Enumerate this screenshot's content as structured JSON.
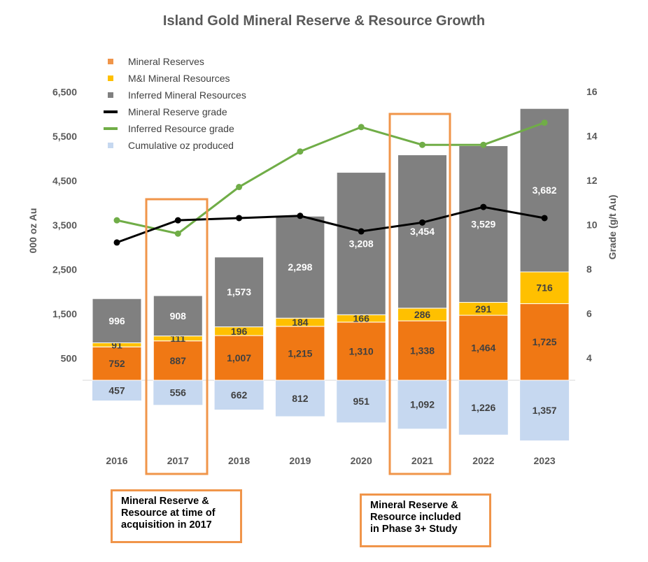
{
  "chart_data": {
    "type": "bar",
    "title": "Island Gold Mineral Reserve & Resource Growth",
    "ylabel": "000 oz Au",
    "y2label": "Grade (g/t Au)",
    "ylim": [
      0,
      6500
    ],
    "y_ticks": [
      "500",
      "1,500",
      "2,500",
      "3,500",
      "4,500",
      "5,500",
      "6,500"
    ],
    "y2lim": [
      3,
      16
    ],
    "y2_ticks": [
      "4",
      "6",
      "8",
      "10",
      "12",
      "14",
      "16"
    ],
    "grid": false,
    "legend_placement": "top-left",
    "categories": [
      "2016",
      "2017",
      "2018",
      "2019",
      "2020",
      "2021",
      "2022",
      "2023"
    ],
    "series": [
      {
        "name": "Mineral Reserves",
        "kind": "stacked-bar",
        "color": "#F07814",
        "values": [
          752,
          887,
          1007,
          1215,
          1310,
          1338,
          1464,
          1725
        ],
        "labels": [
          "752",
          "887",
          "1,007",
          "1,215",
          "1,310",
          "1,338",
          "1,464",
          "1,725"
        ]
      },
      {
        "name": "M&I Mineral Resources",
        "kind": "stacked-bar",
        "color": "#FFC000",
        "values": [
          91,
          111,
          196,
          184,
          166,
          286,
          291,
          716
        ],
        "labels": [
          "91",
          "111",
          "196",
          "184",
          "166",
          "286",
          "291",
          "716"
        ]
      },
      {
        "name": "Inferred Mineral Resources",
        "kind": "stacked-bar",
        "color": "#808080",
        "values": [
          996,
          908,
          1573,
          2298,
          3208,
          3454,
          3529,
          3682
        ],
        "labels": [
          "996",
          "908",
          "1,573",
          "2,298",
          "3,208",
          "3,454",
          "3,529",
          "3,682"
        ]
      },
      {
        "name": "Mineral Reserve grade",
        "kind": "line",
        "axis": "right",
        "color": "#000000",
        "values": [
          9.2,
          10.2,
          10.3,
          10.4,
          9.7,
          10.1,
          10.8,
          10.3
        ]
      },
      {
        "name": "Inferred Resource grade",
        "kind": "line",
        "axis": "right",
        "color": "#70AD47",
        "values": [
          10.2,
          9.6,
          11.7,
          13.3,
          14.4,
          13.6,
          13.6,
          14.6
        ]
      },
      {
        "name": "Cumulative oz produced",
        "kind": "negative-bar",
        "color": "#C6D8F0",
        "values": [
          457,
          556,
          662,
          812,
          951,
          1092,
          1226,
          1357
        ],
        "labels": [
          "457",
          "556",
          "662",
          "812",
          "951",
          "1,092",
          "1,226",
          "1,357"
        ]
      }
    ],
    "highlights": [
      "2017",
      "2021"
    ],
    "highlight_color": "#F0954A",
    "annotations": [
      {
        "target": "2017",
        "text": [
          "Mineral Reserve &",
          "Resource at time of",
          "acquisition in 2017"
        ]
      },
      {
        "target": "2021",
        "text": [
          "Mineral Reserve &",
          "Resource included",
          "in Phase 3+ Study"
        ]
      }
    ]
  }
}
